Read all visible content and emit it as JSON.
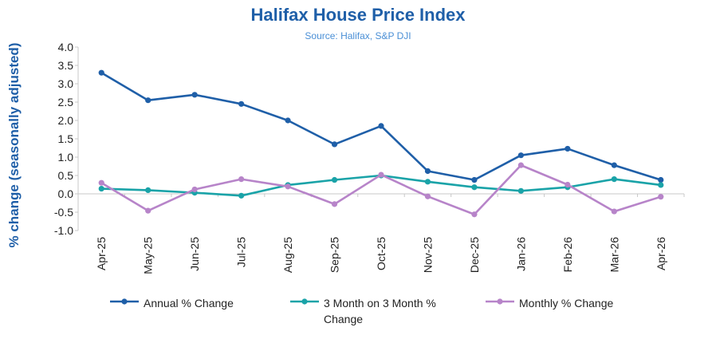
{
  "chart_data": {
    "type": "line",
    "title": "Halifax House Price Index",
    "subtitle": "Source: Halifax,  S&P DJI",
    "ylabel": "%  change (seasonally adjusted)",
    "xlabel": "",
    "ylim": [
      -1.0,
      4.0
    ],
    "yticks": [
      "4.0",
      "3.5",
      "3.0",
      "2.5",
      "2.0",
      "1.5",
      "1.0",
      "0.5",
      "0.0",
      "-0.5",
      "-1.0"
    ],
    "categories": [
      "Apr-25",
      "May-25",
      "Jun-25",
      "Jul-25",
      "Aug-25",
      "Sep-25",
      "Oct-25",
      "Nov-25",
      "Dec-25",
      "Jan-26",
      "Feb-26",
      "Mar-26",
      "Apr-26"
    ],
    "grid": false,
    "legend": "bottom",
    "series": [
      {
        "name": "Annual % Change",
        "color": "#1f5fa8",
        "values": [
          3.3,
          2.55,
          2.7,
          2.45,
          2.0,
          1.35,
          1.85,
          0.62,
          0.38,
          1.05,
          1.23,
          0.78,
          0.38
        ]
      },
      {
        "name": "3 Month on 3 Month % Change",
        "color": "#1aa3a8",
        "values": [
          0.14,
          0.1,
          0.03,
          -0.05,
          0.24,
          0.38,
          0.5,
          0.33,
          0.18,
          0.08,
          0.18,
          0.4,
          0.24
        ]
      },
      {
        "name": "Monthly % Change",
        "color": "#b784c9",
        "values": [
          0.3,
          -0.46,
          0.12,
          0.4,
          0.2,
          -0.28,
          0.52,
          -0.07,
          -0.56,
          0.78,
          0.25,
          -0.48,
          -0.08
        ]
      }
    ]
  }
}
